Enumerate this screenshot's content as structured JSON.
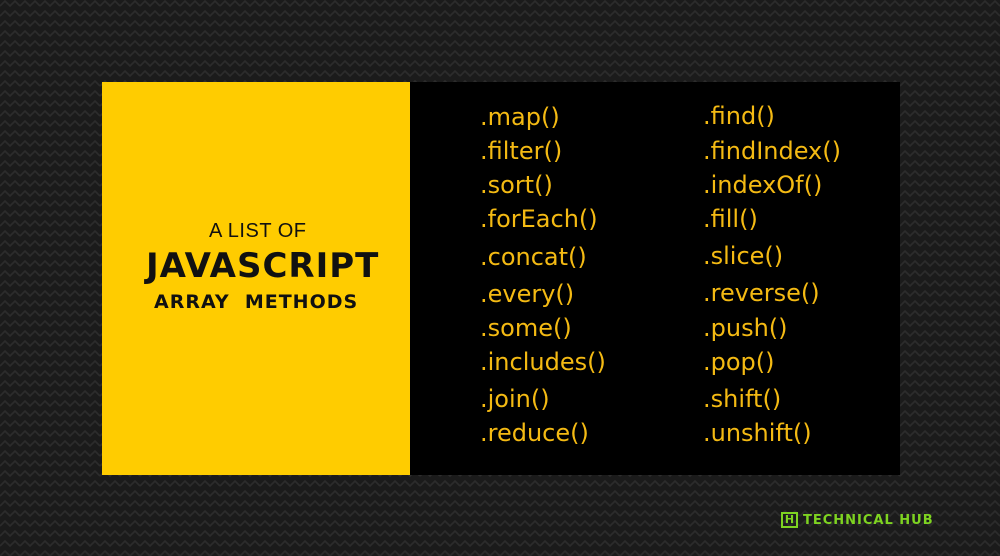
{
  "intro": {
    "line1": "A LIST OF",
    "title": "JAVASCRIPT",
    "subtitle": "ARRAY  METHODS"
  },
  "methods": {
    "left": [
      ".map()",
      ".filter()",
      ".sort()",
      ".forEach()",
      ".concat()",
      ".every()",
      ".some()",
      ".includes()",
      ".join()",
      ".reduce()"
    ],
    "right": [
      ".find()",
      ".findIndex()",
      ".indexOf()",
      ".fill()",
      ".slice()",
      ".reverse()",
      ".push()",
      ".pop()",
      ".shift()",
      ".unshift()"
    ]
  },
  "logo": {
    "mark": "H",
    "text": "TECHNICAL HUB"
  },
  "colors": {
    "panel_yellow": "#ffcc00",
    "method_text": "#f4ba13",
    "logo_green": "#7ed321"
  }
}
